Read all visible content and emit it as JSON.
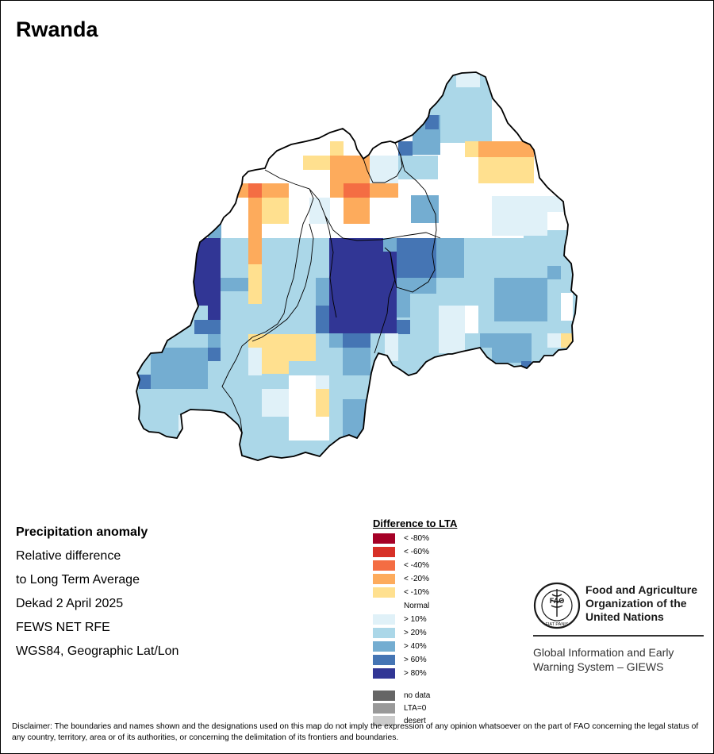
{
  "map": {
    "title": "Rwanda",
    "cell_colors": {
      "n10": "#ffe08f",
      "n20": "#fdab5c",
      "n40": "#f46d43",
      "p10": "#e0f1f8",
      "p20": "#abd7e8",
      "p40": "#74add1",
      "p60": "#4575b4",
      "p80": "#313695"
    }
  },
  "info": {
    "line1": "Precipitation anomaly",
    "line2": "Relative difference",
    "line3": "to Long Term Average",
    "line4": "Dekad 2 April 2025",
    "line5": "FEWS NET RFE",
    "line6": "WGS84, Geographic Lat/Lon"
  },
  "legend": {
    "title": "Difference to LTA",
    "items": [
      {
        "label": "< -80%",
        "color": "#a50026"
      },
      {
        "label": "< -60%",
        "color": "#d73027"
      },
      {
        "label": "< -40%",
        "color": "#f46d43"
      },
      {
        "label": "< -20%",
        "color": "#fdab5c"
      },
      {
        "label": "< -10%",
        "color": "#ffe08f"
      },
      {
        "label": "Normal",
        "color": "#ffffff"
      },
      {
        "label": "> 10%",
        "color": "#e0f1f8"
      },
      {
        "label": "> 20%",
        "color": "#abd7e8"
      },
      {
        "label": "> 40%",
        "color": "#74add1"
      },
      {
        "label": "> 60%",
        "color": "#4575b4"
      },
      {
        "label": "> 80%",
        "color": "#313695"
      },
      {
        "label": "no data",
        "color": "#666666"
      },
      {
        "label": "LTA=0",
        "color": "#999999"
      },
      {
        "label": "desert",
        "color": "#cccccc"
      }
    ]
  },
  "logo": {
    "line1": "Food and Agriculture",
    "line2": "Organization of the",
    "line3": "United Nations",
    "sub1": "Global Information and Early",
    "sub2": "Warning System – GIEWS",
    "emblem_text": "FAO",
    "emblem_ring": "FIAT PANIS"
  },
  "disclaimer": "Disclaimer: The boundaries and names shown and the designations used on this map do not imply the expression of any opinion whatsoever on the part of FAO concerning the legal status of any country, territory, area or of its authorities, or concerning the delimitation of its frontiers and boundaries."
}
